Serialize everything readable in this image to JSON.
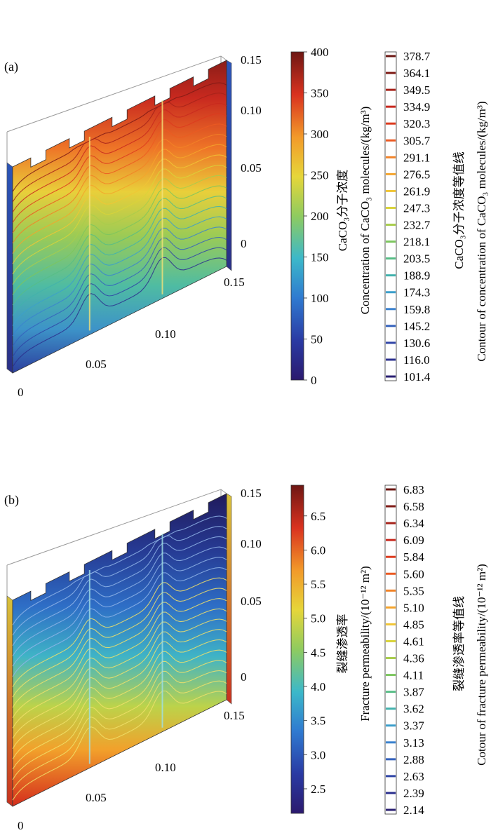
{
  "panels": [
    {
      "label": "(a)",
      "vertical_axis_ticks": [
        "0",
        "0.05",
        "0.10",
        "0.15"
      ],
      "horizontal_axis_ticks": [
        "0",
        "0.05",
        "0.10",
        "0.15"
      ],
      "colorbar": {
        "ticks": [
          "0",
          "50",
          "100",
          "150",
          "200",
          "250",
          "300",
          "350",
          "400"
        ],
        "min": 0,
        "max": 400,
        "title_cn": "CaCO₃分子浓度",
        "title_en": "Concentration of  CaCO₃ molecules/(kg/m³)"
      },
      "contour_legend": {
        "values": [
          "378.7",
          "364.1",
          "349.5",
          "334.9",
          "320.3",
          "305.7",
          "291.1",
          "276.5",
          "261.9",
          "247.3",
          "232.7",
          "218.1",
          "203.5",
          "188.9",
          "174.3",
          "159.8",
          "145.2",
          "130.6",
          "116.0",
          "101.4"
        ],
        "title_cn": "CaCO₃分子浓度等值线",
        "title_en": "Contour of  concentration of  CaCO₃  molecules/(kg/m³)"
      },
      "field": "concentration"
    },
    {
      "label": "(b)",
      "vertical_axis_ticks": [
        "0",
        "0.05",
        "0.10",
        "0.15"
      ],
      "horizontal_axis_ticks": [
        "0",
        "0.05",
        "0.10",
        "0.15"
      ],
      "colorbar": {
        "ticks": [
          "2.5",
          "3.0",
          "3.5",
          "4.0",
          "4.5",
          "5.0",
          "5.5",
          "6.0",
          "6.5"
        ],
        "min": 2.14,
        "max": 6.95,
        "title_cn": "裂缝渗透率",
        "title_en": "Fracture permeability/(10⁻¹² m²)"
      },
      "contour_legend": {
        "values": [
          "6.83",
          "6.58",
          "6.34",
          "6.09",
          "5.84",
          "5.60",
          "5.35",
          "5.10",
          "4.85",
          "4.61",
          "4.36",
          "4.11",
          "3.87",
          "3.62",
          "3.37",
          "3.13",
          "2.88",
          "2.63",
          "2.39",
          "2.14"
        ],
        "title_cn": "裂缝渗透率等值线",
        "title_en": "Cotour of  fracture permeability/(10⁻¹² m²)"
      },
      "field": "permeability"
    }
  ]
}
